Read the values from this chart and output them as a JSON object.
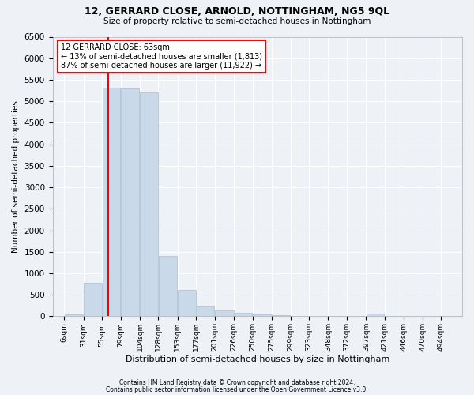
{
  "title": "12, GERRARD CLOSE, ARNOLD, NOTTINGHAM, NG5 9QL",
  "subtitle": "Size of property relative to semi-detached houses in Nottingham",
  "xlabel": "Distribution of semi-detached houses by size in Nottingham",
  "ylabel": "Number of semi-detached properties",
  "footer1": "Contains HM Land Registry data © Crown copyright and database right 2024.",
  "footer2": "Contains public sector information licensed under the Open Government Licence v3.0.",
  "property_size": 63,
  "annotation_title": "12 GERRARD CLOSE: 63sqm",
  "annotation_line1": "← 13% of semi-detached houses are smaller (1,813)",
  "annotation_line2": "87% of semi-detached houses are larger (11,922) →",
  "bar_color": "#c9d9e9",
  "bar_edge_color": "#aabccc",
  "redline_color": "red",
  "background_color": "#eef2f6",
  "grid_color": "#ffffff",
  "categories": [
    "6sqm",
    "31sqm",
    "55sqm",
    "79sqm",
    "104sqm",
    "128sqm",
    "153sqm",
    "177sqm",
    "201sqm",
    "226sqm",
    "250sqm",
    "275sqm",
    "299sqm",
    "323sqm",
    "348sqm",
    "372sqm",
    "397sqm",
    "421sqm",
    "446sqm",
    "470sqm",
    "494sqm"
  ],
  "bin_edges": [
    6,
    31,
    55,
    79,
    104,
    128,
    153,
    177,
    201,
    226,
    250,
    275,
    299,
    323,
    348,
    372,
    397,
    421,
    446,
    470,
    494,
    519
  ],
  "counts": [
    45,
    780,
    5320,
    5290,
    5210,
    1400,
    620,
    255,
    130,
    80,
    48,
    20,
    5,
    0,
    0,
    0,
    55,
    0,
    0,
    0,
    0
  ],
  "ylim": [
    0,
    6500
  ],
  "yticks": [
    0,
    500,
    1000,
    1500,
    2000,
    2500,
    3000,
    3500,
    4000,
    4500,
    5000,
    5500,
    6000,
    6500
  ]
}
